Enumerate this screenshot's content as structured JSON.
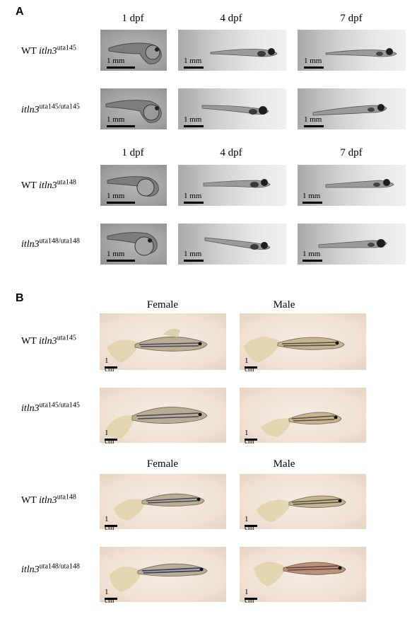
{
  "panel_a": {
    "letter": "A",
    "columns": [
      "1 dpf",
      "4 dpf",
      "7 dpf"
    ],
    "scale_label": "1 mm",
    "rows": [
      {
        "prefix": "WT ",
        "gene": "itln3",
        "allele": "uta145"
      },
      {
        "prefix": "",
        "gene": "itln3",
        "allele": "uta145/uta145"
      },
      {
        "prefix": "WT ",
        "gene": "itln3",
        "allele": "uta148"
      },
      {
        "prefix": "",
        "gene": "itln3",
        "allele": "uta148/uta148"
      }
    ]
  },
  "panel_b": {
    "letter": "B",
    "columns": [
      "Female",
      "Male"
    ],
    "scale_label": "1 cm",
    "rows": [
      {
        "prefix": "WT ",
        "gene": "itln3",
        "allele": "uta145"
      },
      {
        "prefix": "",
        "gene": "itln3",
        "allele": "uta145/uta145"
      },
      {
        "prefix": "WT ",
        "gene": "itln3",
        "allele": "uta148"
      },
      {
        "prefix": "",
        "gene": "itln3",
        "allele": "uta148/uta148"
      }
    ]
  }
}
